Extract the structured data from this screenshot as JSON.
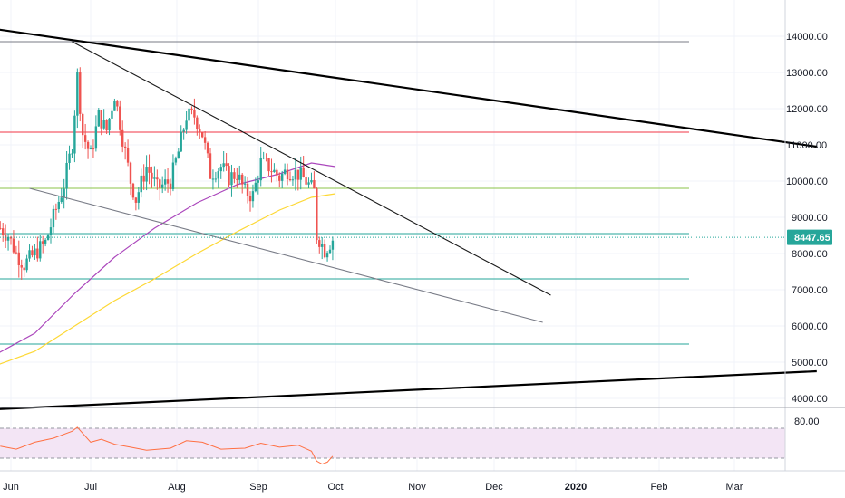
{
  "chart_data": {
    "type": "candlestick",
    "instrument_note": "",
    "x_axis": {
      "tick_labels": [
        "Jun",
        "Jul",
        "Aug",
        "Sep",
        "Oct",
        "Nov",
        "Dec",
        "2020",
        "Feb",
        "Mar"
      ],
      "bold_labels": [
        "2020"
      ]
    },
    "price_axis": {
      "tick_labels": [
        "4000.00",
        "5000.00",
        "6000.00",
        "7000.00",
        "8000.00",
        "9000.00",
        "10000.00",
        "11000.00",
        "12000.00",
        "13000.00",
        "14000.00"
      ],
      "ylim": [
        3700,
        14900
      ]
    },
    "last_price": {
      "value": 8447.65,
      "label": "8447.65",
      "color": "#26a69a"
    },
    "candles": {
      "start": "2019-05-28",
      "end": "2019-09-30",
      "waypoints": [
        [
          "2019-05-28",
          8700
        ],
        [
          "2019-05-31",
          8500
        ],
        [
          "2019-06-03",
          8000
        ],
        [
          "2019-06-06",
          7700
        ],
        [
          "2019-06-10",
          8000
        ],
        [
          "2019-06-14",
          8300
        ],
        [
          "2019-06-17",
          9000
        ],
        [
          "2019-06-21",
          9900
        ],
        [
          "2019-06-24",
          11000
        ],
        [
          "2019-06-26",
          12900
        ],
        [
          "2019-06-28",
          11300
        ],
        [
          "2019-07-01",
          10700
        ],
        [
          "2019-07-04",
          11800
        ],
        [
          "2019-07-07",
          11400
        ],
        [
          "2019-07-10",
          12400
        ],
        [
          "2019-07-13",
          11200
        ],
        [
          "2019-07-16",
          10000
        ],
        [
          "2019-07-18",
          9500
        ],
        [
          "2019-07-22",
          10400
        ],
        [
          "2019-07-26",
          9800
        ],
        [
          "2019-07-31",
          10000
        ],
        [
          "2019-08-03",
          10800
        ],
        [
          "2019-08-06",
          11800
        ],
        [
          "2019-08-09",
          11800
        ],
        [
          "2019-08-12",
          11300
        ],
        [
          "2019-08-15",
          10200
        ],
        [
          "2019-08-19",
          10400
        ],
        [
          "2019-08-22",
          10100
        ],
        [
          "2019-08-25",
          10200
        ],
        [
          "2019-08-28",
          9700
        ],
        [
          "2019-08-31",
          9600
        ],
        [
          "2019-09-03",
          10500
        ],
        [
          "2019-09-06",
          10400
        ],
        [
          "2019-09-10",
          10100
        ],
        [
          "2019-09-13",
          10300
        ],
        [
          "2019-09-17",
          10200
        ],
        [
          "2019-09-20",
          10000
        ],
        [
          "2019-09-23",
          9700
        ],
        [
          "2019-09-24",
          8500
        ],
        [
          "2019-09-25",
          8400
        ],
        [
          "2019-09-27",
          8100
        ],
        [
          "2019-09-30",
          8400
        ]
      ],
      "up_color": "#26a69a",
      "down_color": "#ef5350"
    },
    "moving_averages": [
      {
        "color": "#ab47bc",
        "points": [
          [
            "2019-05-26",
            5200
          ],
          [
            "2019-06-10",
            5800
          ],
          [
            "2019-06-25",
            6900
          ],
          [
            "2019-07-10",
            7900
          ],
          [
            "2019-07-25",
            8700
          ],
          [
            "2019-08-10",
            9400
          ],
          [
            "2019-08-25",
            9900
          ],
          [
            "2019-09-10",
            10200
          ],
          [
            "2019-09-22",
            10500
          ],
          [
            "2019-10-01",
            10400
          ]
        ]
      },
      {
        "color": "#fdd835",
        "points": [
          [
            "2019-05-26",
            4900
          ],
          [
            "2019-06-10",
            5300
          ],
          [
            "2019-06-25",
            6000
          ],
          [
            "2019-07-10",
            6700
          ],
          [
            "2019-07-25",
            7300
          ],
          [
            "2019-08-10",
            8000
          ],
          [
            "2019-08-25",
            8600
          ],
          [
            "2019-09-10",
            9200
          ],
          [
            "2019-09-22",
            9550
          ],
          [
            "2019-10-01",
            9650
          ]
        ]
      }
    ],
    "horizontal_levels": [
      {
        "price": 13850,
        "color": "#787b86",
        "end": "2020-02-11"
      },
      {
        "price": 11350,
        "color": "#f23645",
        "end": "2020-02-11"
      },
      {
        "price": 9800,
        "color": "#8bc34a",
        "end": "2020-02-11"
      },
      {
        "price": 8550,
        "color": "#26a69a",
        "end": "2020-02-11"
      },
      {
        "price": 7300,
        "color": "#26a69a",
        "end": "2020-02-11"
      },
      {
        "price": 5500,
        "color": "#26a69a",
        "end": "2020-02-11"
      }
    ],
    "trend_lines": [
      {
        "color": "#000000",
        "weight": "bold",
        "from": [
          "2019-05-26",
          14200
        ],
        "to": [
          "2020-03-30",
          10950
        ]
      },
      {
        "color": "#000000",
        "weight": "bold",
        "from": [
          "2019-05-26",
          3700
        ],
        "to": [
          "2020-03-30",
          4750
        ]
      },
      {
        "color": "#000000",
        "weight": "normal",
        "from": [
          "2019-06-24",
          13850
        ],
        "to": [
          "2019-12-21",
          6850
        ]
      },
      {
        "color": "#787b86",
        "weight": "normal",
        "from": [
          "2019-06-08",
          9800
        ],
        "to": [
          "2019-12-18",
          6100
        ]
      }
    ],
    "rsi": {
      "label": "80.00",
      "upper_band": 80,
      "lower_band": 20,
      "band_color": "#f3e5f5",
      "line_color": "#ff7043",
      "points": [
        [
          "2019-05-28",
          44
        ],
        [
          "2019-06-03",
          38
        ],
        [
          "2019-06-10",
          52
        ],
        [
          "2019-06-17",
          60
        ],
        [
          "2019-06-24",
          74
        ],
        [
          "2019-06-26",
          82
        ],
        [
          "2019-07-01",
          52
        ],
        [
          "2019-07-05",
          58
        ],
        [
          "2019-07-10",
          48
        ],
        [
          "2019-07-16",
          42
        ],
        [
          "2019-07-22",
          36
        ],
        [
          "2019-07-31",
          40
        ],
        [
          "2019-08-06",
          55
        ],
        [
          "2019-08-12",
          52
        ],
        [
          "2019-08-19",
          38
        ],
        [
          "2019-08-28",
          40
        ],
        [
          "2019-09-03",
          50
        ],
        [
          "2019-09-10",
          42
        ],
        [
          "2019-09-17",
          46
        ],
        [
          "2019-09-22",
          34
        ],
        [
          "2019-09-24",
          14
        ],
        [
          "2019-09-26",
          8
        ],
        [
          "2019-09-28",
          12
        ],
        [
          "2019-09-30",
          24
        ]
      ]
    }
  }
}
